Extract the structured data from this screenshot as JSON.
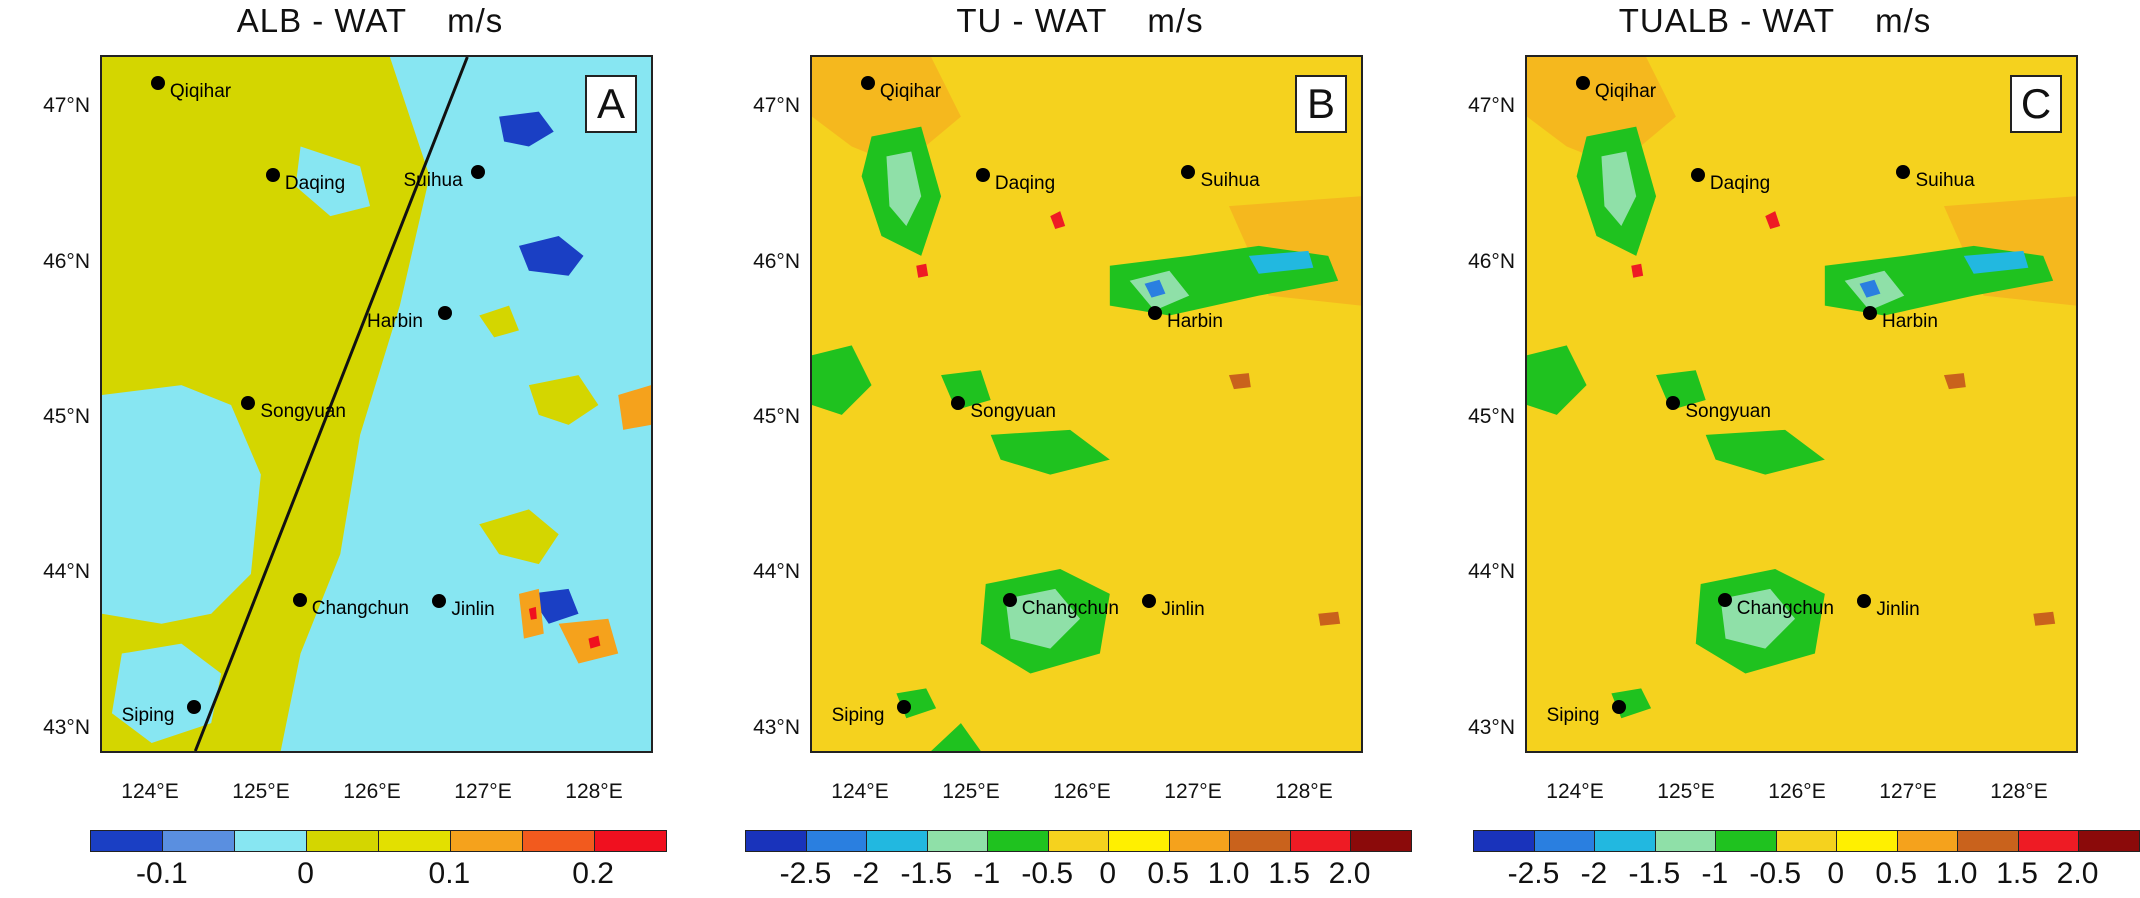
{
  "panels": [
    {
      "title": "ALB - WAT    m/s",
      "letter": "A",
      "lat_ticks": [
        "47°N",
        "46°N",
        "45°N",
        "44°N",
        "43°N"
      ],
      "lon_ticks": [
        "124°E",
        "125°E",
        "126°E",
        "127°E",
        "128°E"
      ],
      "colorbar_colors": [
        "#1a3fc4",
        "#5a8fe0",
        "#87e6f2",
        "#d4d600",
        "#e3e000",
        "#f5a21c",
        "#f25a1e",
        "#f0101f"
      ],
      "colorbar_labels": [
        "-0.1",
        "0",
        "0.1",
        "0.2"
      ]
    },
    {
      "title": "TU - WAT    m/s",
      "letter": "B",
      "lat_ticks": [
        "47°N",
        "46°N",
        "45°N",
        "44°N",
        "43°N"
      ],
      "lon_ticks": [
        "124°E",
        "125°E",
        "126°E",
        "127°E",
        "128°E"
      ],
      "colorbar_colors": [
        "#1933bb",
        "#2a7fe0",
        "#22b8e0",
        "#8fe0a8",
        "#1fc21f",
        "#f5d21e",
        "#fff000",
        "#f5a21c",
        "#c9621c",
        "#ee1b24",
        "#8b0a0a"
      ],
      "colorbar_labels": [
        "-2.5",
        "-2",
        "-1.5",
        "-1",
        "-0.5",
        "0",
        "0.5",
        "1.0",
        "1.5",
        "2.0"
      ]
    },
    {
      "title": "TUALB - WAT    m/s",
      "letter": "C",
      "lat_ticks": [
        "47°N",
        "46°N",
        "45°N",
        "44°N",
        "43°N"
      ],
      "lon_ticks": [
        "124°E",
        "125°E",
        "126°E",
        "127°E",
        "128°E"
      ],
      "colorbar_colors": [
        "#1933bb",
        "#2a7fe0",
        "#22b8e0",
        "#8fe0a8",
        "#1fc21f",
        "#f5d21e",
        "#fff000",
        "#f5a21c",
        "#c9621c",
        "#ee1b24",
        "#8b0a0a"
      ],
      "colorbar_labels": [
        "-2.5",
        "-2",
        "-1.5",
        "-1",
        "-0.5",
        "0",
        "0.5",
        "1.0",
        "1.5",
        "2.0"
      ]
    }
  ],
  "cities": [
    {
      "name": "Qiqihar",
      "lon": 124.05,
      "lat": 47.18
    },
    {
      "name": "Daqing",
      "lon": 125.08,
      "lat": 46.59
    },
    {
      "name": "Suihua",
      "lon": 126.92,
      "lat": 46.61
    },
    {
      "name": "Harbin",
      "lon": 126.62,
      "lat": 45.7
    },
    {
      "name": "Songyuan",
      "lon": 124.86,
      "lat": 45.12
    },
    {
      "name": "Changchun",
      "lon": 125.32,
      "lat": 43.85
    },
    {
      "name": "Jinlin",
      "lon": 126.57,
      "lat": 43.84
    },
    {
      "name": "Siping",
      "lon": 124.37,
      "lat": 43.16
    }
  ]
}
